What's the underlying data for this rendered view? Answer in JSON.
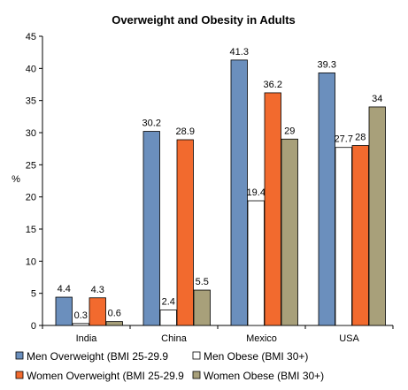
{
  "chart_data": {
    "type": "bar",
    "title": "Overweight and Obesity in Adults",
    "xlabel": "",
    "ylabel": "%",
    "ylim": [
      0,
      45
    ],
    "yticks": [
      0,
      5,
      10,
      15,
      20,
      25,
      30,
      35,
      40,
      45
    ],
    "categories": [
      "India",
      "China",
      "Mexico",
      "USA"
    ],
    "series": [
      {
        "name": "Men Overweight (BMI 25-29.9",
        "color": "#6b8fbd",
        "values": [
          4.4,
          30.2,
          41.3,
          39.3
        ],
        "labels": [
          "4.4",
          "30.2",
          "41.3",
          "39.3"
        ]
      },
      {
        "name": "Men Obese (BMI 30+)",
        "color": "#ffffff",
        "values": [
          0.3,
          2.4,
          19.4,
          27.7
        ],
        "labels": [
          "0.3",
          "2.4",
          "19.4",
          "27.7"
        ]
      },
      {
        "name": "Women Overweight (BMI 25-29.9",
        "color": "#f26a2e",
        "values": [
          4.3,
          28.9,
          36.2,
          28
        ],
        "labels": [
          "4.3",
          "28.9",
          "36.2",
          "28"
        ]
      },
      {
        "name": "Women Obese (BMI 30+)",
        "color": "#a8a07a",
        "values": [
          0.6,
          5.5,
          29,
          34
        ],
        "labels": [
          "0.6",
          "5.5",
          "29",
          "34"
        ]
      }
    ],
    "grid": false,
    "legend_position": "bottom"
  }
}
